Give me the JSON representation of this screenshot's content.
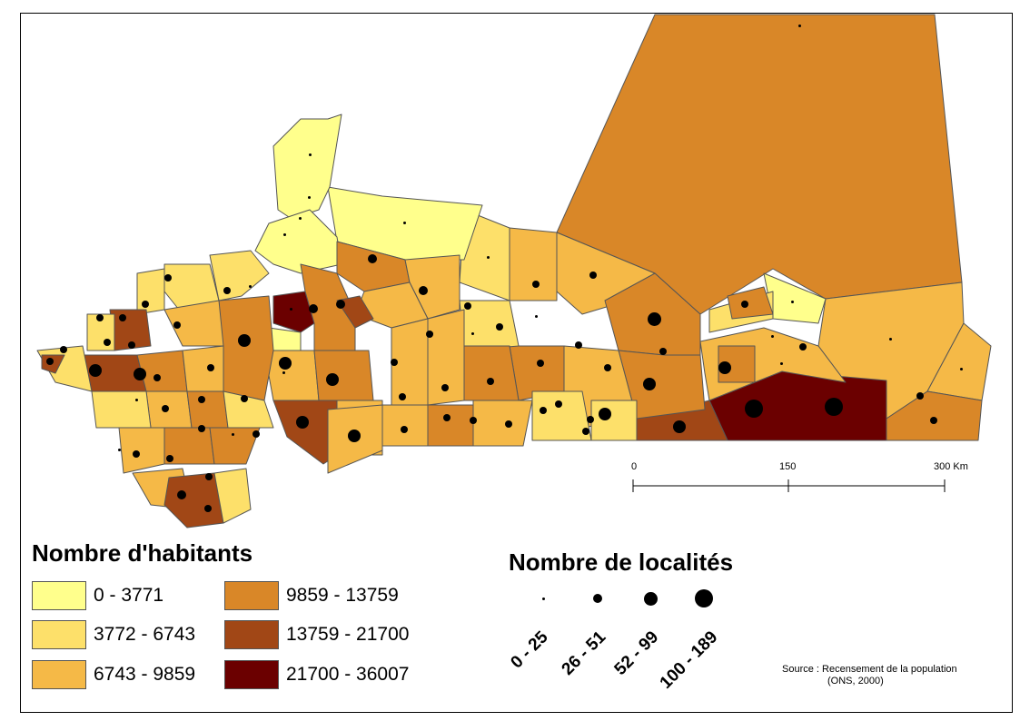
{
  "legend": {
    "population_title": "Nombre d'habitants",
    "population_classes": [
      {
        "label": "0 - 3771",
        "color": "#ffff8c"
      },
      {
        "label": "3772 - 6743",
        "color": "#fde06a"
      },
      {
        "label": "6743 - 9859",
        "color": "#f5b947"
      },
      {
        "label": "9859 - 13759",
        "color": "#d98728"
      },
      {
        "label": "13759 - 21700",
        "color": "#a14716"
      },
      {
        "label": "21700 - 36007",
        "color": "#6b0000"
      }
    ],
    "localities_title": "Nombre de localités",
    "localities_classes": [
      {
        "label": "0 - 25"
      },
      {
        "label": "26 - 51"
      },
      {
        "label": "52 - 99"
      },
      {
        "label": "100 - 189"
      }
    ]
  },
  "scale": {
    "ticks": [
      "0",
      "150",
      "300 Km"
    ]
  },
  "source": {
    "line1": "Source : Recensement de la population",
    "line2": "(ONS, 2000)"
  },
  "colors": {
    "border": "#555555",
    "frame": "#000000"
  }
}
